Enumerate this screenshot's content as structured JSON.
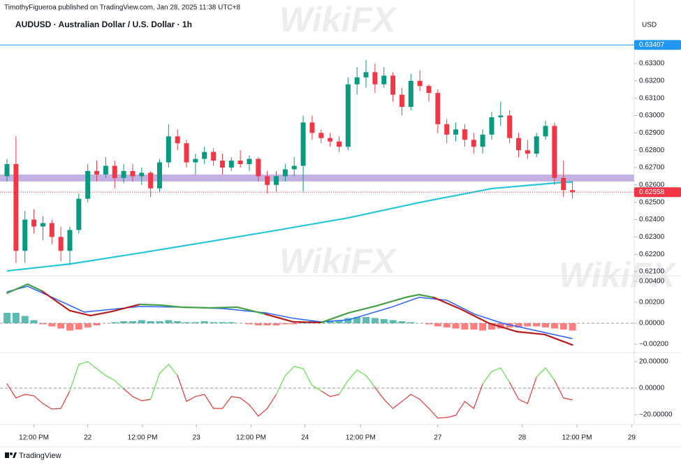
{
  "header": {
    "publisher": "TimothyFigueroa published on TradingView.com, Jan 28, 2025 11:38 UTC+8",
    "currency": "USD",
    "watermark": "WikiFX",
    "brand": "TradingView"
  },
  "chart_data": [
    {
      "type": "candlestick",
      "title": "AUDUSD · Australian Dollar / U.S. Dollar · 1h",
      "up_color": "#089981",
      "down_color": "#f23645",
      "x": [
        0,
        1,
        2,
        3,
        4,
        5,
        6,
        7,
        8,
        9,
        10,
        11,
        12,
        13,
        14,
        15,
        16,
        17,
        18,
        19,
        20,
        21,
        22,
        23,
        24,
        25,
        26,
        27,
        28,
        29,
        30,
        31,
        32,
        33,
        34,
        35,
        36,
        37,
        38,
        39,
        40,
        41,
        42,
        43,
        44,
        45,
        46,
        47,
        48,
        49,
        50,
        51,
        52,
        53,
        54,
        55,
        56,
        57,
        58,
        59,
        60,
        61,
        62,
        63
      ],
      "open": [
        0.6265,
        0.6272,
        0.6222,
        0.624,
        0.6236,
        0.6238,
        0.623,
        0.6222,
        0.6234,
        0.6252,
        0.6268,
        0.6266,
        0.6271,
        0.6264,
        0.6268,
        0.6265,
        0.6267,
        0.6258,
        0.6273,
        0.6288,
        0.6284,
        0.6273,
        0.6275,
        0.6279,
        0.6274,
        0.627,
        0.6274,
        0.6272,
        0.6275,
        0.6265,
        0.626,
        0.6265,
        0.6269,
        0.6271,
        0.6296,
        0.629,
        0.6287,
        0.6285,
        0.6282,
        0.6318,
        0.6322,
        0.6325,
        0.6318,
        0.6323,
        0.6312,
        0.6305,
        0.632,
        0.6317,
        0.6313,
        0.6295,
        0.6289,
        0.6292,
        0.6286,
        0.6282,
        0.6289,
        0.6299,
        0.63,
        0.6287,
        0.628,
        0.6278,
        0.6288,
        0.6294,
        0.6264,
        0.6257
      ],
      "high": [
        0.6275,
        0.6288,
        0.6245,
        0.6246,
        0.6242,
        0.624,
        0.6236,
        0.6236,
        0.6255,
        0.6272,
        0.6274,
        0.6276,
        0.6274,
        0.6272,
        0.6272,
        0.627,
        0.6268,
        0.6275,
        0.6295,
        0.6292,
        0.6286,
        0.6278,
        0.6282,
        0.6281,
        0.6278,
        0.6276,
        0.628,
        0.6277,
        0.6276,
        0.6268,
        0.6268,
        0.6272,
        0.6276,
        0.63,
        0.63,
        0.6292,
        0.629,
        0.6288,
        0.6322,
        0.6328,
        0.6332,
        0.633,
        0.6328,
        0.6325,
        0.6316,
        0.6324,
        0.6326,
        0.6318,
        0.6315,
        0.6298,
        0.6296,
        0.6295,
        0.629,
        0.6292,
        0.6302,
        0.6308,
        0.6303,
        0.629,
        0.6286,
        0.629,
        0.6297,
        0.6296,
        0.6274,
        0.6262
      ],
      "low": [
        0.6262,
        0.6215,
        0.6215,
        0.6232,
        0.6228,
        0.6226,
        0.6216,
        0.6214,
        0.6232,
        0.625,
        0.6262,
        0.6264,
        0.6258,
        0.6261,
        0.6262,
        0.626,
        0.6253,
        0.6256,
        0.627,
        0.628,
        0.627,
        0.6266,
        0.6272,
        0.6271,
        0.6266,
        0.6268,
        0.627,
        0.6268,
        0.6262,
        0.6255,
        0.6256,
        0.6262,
        0.6265,
        0.6256,
        0.6286,
        0.6284,
        0.6282,
        0.6279,
        0.628,
        0.6312,
        0.6316,
        0.6313,
        0.6316,
        0.6308,
        0.63,
        0.6303,
        0.6314,
        0.6308,
        0.629,
        0.6284,
        0.6285,
        0.6282,
        0.6278,
        0.6278,
        0.6286,
        0.6294,
        0.6284,
        0.6276,
        0.6275,
        0.6276,
        0.6286,
        0.626,
        0.6253,
        0.6252
      ],
      "close": [
        0.6272,
        0.6222,
        0.624,
        0.6236,
        0.6238,
        0.623,
        0.6222,
        0.6234,
        0.6252,
        0.6268,
        0.6266,
        0.6271,
        0.6264,
        0.6268,
        0.6265,
        0.6267,
        0.6258,
        0.6273,
        0.6288,
        0.6284,
        0.6273,
        0.6275,
        0.6279,
        0.6274,
        0.627,
        0.6274,
        0.6272,
        0.6275,
        0.6265,
        0.626,
        0.6265,
        0.6269,
        0.6271,
        0.6296,
        0.629,
        0.6287,
        0.6285,
        0.6282,
        0.6318,
        0.6322,
        0.6325,
        0.6318,
        0.6323,
        0.6312,
        0.6305,
        0.632,
        0.6317,
        0.6313,
        0.6295,
        0.6289,
        0.6292,
        0.6286,
        0.6282,
        0.6289,
        0.6299,
        0.63,
        0.6287,
        0.628,
        0.6278,
        0.6288,
        0.6294,
        0.6264,
        0.6257,
        0.62558
      ],
      "series": [
        {
          "color": "#26c6da",
          "x": [
            0,
            7,
            15,
            23,
            30,
            38,
            46,
            54,
            62,
            63
          ],
          "values": [
            0.62104,
            0.62144,
            0.62209,
            0.62277,
            0.62338,
            0.6241,
            0.62499,
            0.62579,
            0.62615,
            0.62617
          ]
        }
      ],
      "zone": {
        "from": 0.6262,
        "to": 0.6266,
        "color": "#b39ddb"
      },
      "levels": [
        {
          "value": 0.63407,
          "label": "0.63407",
          "color": "#2196f3",
          "style": "solid"
        },
        {
          "value": 0.62558,
          "label": "0.62558",
          "color": "#f23645",
          "style": "dotted"
        }
      ],
      "xlim": [
        -0.78,
        69.88
      ],
      "xticks": [
        {
          "value": 3,
          "label": "12:00 PM"
        },
        {
          "value": 9,
          "label": "22"
        },
        {
          "value": 15.1,
          "label": "12:00 PM"
        },
        {
          "value": 21.1,
          "label": "23"
        },
        {
          "value": 27.2,
          "label": "12:00 PM"
        },
        {
          "value": 33.2,
          "label": "24"
        },
        {
          "value": 39.4,
          "label": "12:00 PM"
        },
        {
          "value": 48,
          "label": "27"
        },
        {
          "value": 57.4,
          "label": "28"
        },
        {
          "value": 63.5,
          "label": "12:00 PM"
        },
        {
          "value": 69.6,
          "label": "29"
        }
      ],
      "ylim": [
        0.62076,
        0.63666
      ],
      "yticks": [
        {
          "value": 0.633,
          "label": "0.63300"
        },
        {
          "value": 0.632,
          "label": "0.63200"
        },
        {
          "value": 0.631,
          "label": "0.63100"
        },
        {
          "value": 0.63,
          "label": "0.63000"
        },
        {
          "value": 0.629,
          "label": "0.62900"
        },
        {
          "value": 0.628,
          "label": "0.62800"
        },
        {
          "value": 0.627,
          "label": "0.62700"
        },
        {
          "value": 0.626,
          "label": "0.62600"
        },
        {
          "value": 0.625,
          "label": "0.62500"
        },
        {
          "value": 0.624,
          "label": "0.62400"
        },
        {
          "value": 0.623,
          "label": "0.62300"
        },
        {
          "value": 0.622,
          "label": "0.62200"
        },
        {
          "value": 0.621,
          "label": "0.62100"
        }
      ]
    },
    {
      "type": "macd",
      "up_color": "#43a047",
      "down_color": "#b71c1c",
      "macd": {
        "x": [
          0,
          2.3,
          3.9,
          7,
          9.3,
          11.7,
          14.8,
          17.1,
          19.5,
          22.6,
          25.7,
          28.8,
          31.9,
          35,
          38.1,
          41.2,
          44.4,
          45.9,
          47.5,
          50.6,
          53.7,
          56.8,
          59.9,
          63
        ],
        "values": [
          0.00287,
          0.00373,
          0.00307,
          0.0012,
          0.00073,
          0.00113,
          0.0018,
          0.00173,
          0.00153,
          0.00147,
          0.00153,
          0.00087,
          0.00013,
          7e-05,
          0.001,
          0.00167,
          0.00247,
          0.00273,
          0.00247,
          0.00133,
          0,
          -0.0008,
          -0.00107,
          -0.00207
        ]
      },
      "signal": {
        "color": "#2962ff",
        "x": [
          0,
          2.3,
          5.4,
          8.6,
          11.7,
          14.8,
          19.5,
          24.1,
          28.8,
          31.9,
          35,
          38.1,
          42.8,
          45.9,
          49,
          52.1,
          55.2,
          58.4,
          63
        ],
        "values": [
          0.003,
          0.00353,
          0.00233,
          0.00107,
          0.00133,
          0.0016,
          0.00153,
          0.0014,
          0.001,
          0.00047,
          0.00013,
          0.00033,
          0.00153,
          0.00247,
          0.0022,
          0.00087,
          0,
          -0.0006,
          -0.00147
        ]
      },
      "histogram": {
        "pos_color": "#26a69a",
        "neg_color": "#ff5252",
        "values": [
          0.001,
          0.001,
          0.0007,
          0.0003,
          -0.0001,
          -0.0003,
          -0.0005,
          -0.0007,
          -0.0006,
          -0.0004,
          -0.0002,
          0,
          0.0001,
          0.0002,
          0.0002,
          0.0003,
          0.0002,
          0.0002,
          0.0003,
          0.0002,
          0.0001,
          0.0001,
          0.0002,
          0.0001,
          0.0001,
          0.0001,
          0,
          -0.0001,
          -0.0002,
          -0.0002,
          -0.0002,
          -0.0001,
          -0.0001,
          0.0001,
          0.0002,
          0.0002,
          0.0002,
          0.0003,
          0.0005,
          0.0006,
          0.0006,
          0.0005,
          0.0004,
          0.0003,
          0.0002,
          0.0001,
          0,
          -0.0001,
          -0.0003,
          -0.0004,
          -0.0005,
          -0.0006,
          -0.0006,
          -0.0007,
          -0.0006,
          -0.0005,
          -0.0004,
          -0.0004,
          -0.0003,
          -0.0003,
          -0.0004,
          -0.0005,
          -0.0006,
          -0.0007
        ]
      },
      "ylim": [
        -0.0028,
        0.00453
      ],
      "yticks": [
        {
          "value": 0.004,
          "label": "0.00400"
        },
        {
          "value": 0.002,
          "label": "0.00200"
        },
        {
          "value": 0,
          "label": "0.00000"
        },
        {
          "value": -0.002,
          "label": "−0.00200"
        }
      ]
    },
    {
      "type": "line",
      "pos_color": "#5fe04a",
      "neg_color": "#e53935",
      "values": [
        3.2,
        -7.4,
        -4.7,
        -5.8,
        -11.6,
        -15.8,
        -15.3,
        -2.1,
        17.9,
        20,
        14.7,
        9.5,
        5.8,
        -0.5,
        -6.3,
        -9.5,
        -8.4,
        11.1,
        17.9,
        9.5,
        -10,
        -6.3,
        -4.7,
        -15.3,
        -15.3,
        -6.3,
        -7.4,
        -12.6,
        -21.1,
        -15.3,
        -4.7,
        9.5,
        16.3,
        14.7,
        2.1,
        -2.1,
        -6.3,
        -4.7,
        5.8,
        13.7,
        9.5,
        0.5,
        -8.4,
        -15.3,
        -10,
        -4.7,
        -8.4,
        -15.3,
        -22.6,
        -22.1,
        -20.5,
        -10,
        -15.3,
        3.2,
        12.6,
        15.3,
        4.2,
        -8.4,
        -11.6,
        8.4,
        15.3,
        5.8,
        -7.4,
        -8.9
      ],
      "ylim": [
        -27.4,
        26.8
      ],
      "yticks": [
        {
          "value": 20,
          "label": "20.00000"
        },
        {
          "value": 0,
          "label": "0.00000"
        },
        {
          "value": -20,
          "label": "−20.00000"
        }
      ]
    }
  ]
}
